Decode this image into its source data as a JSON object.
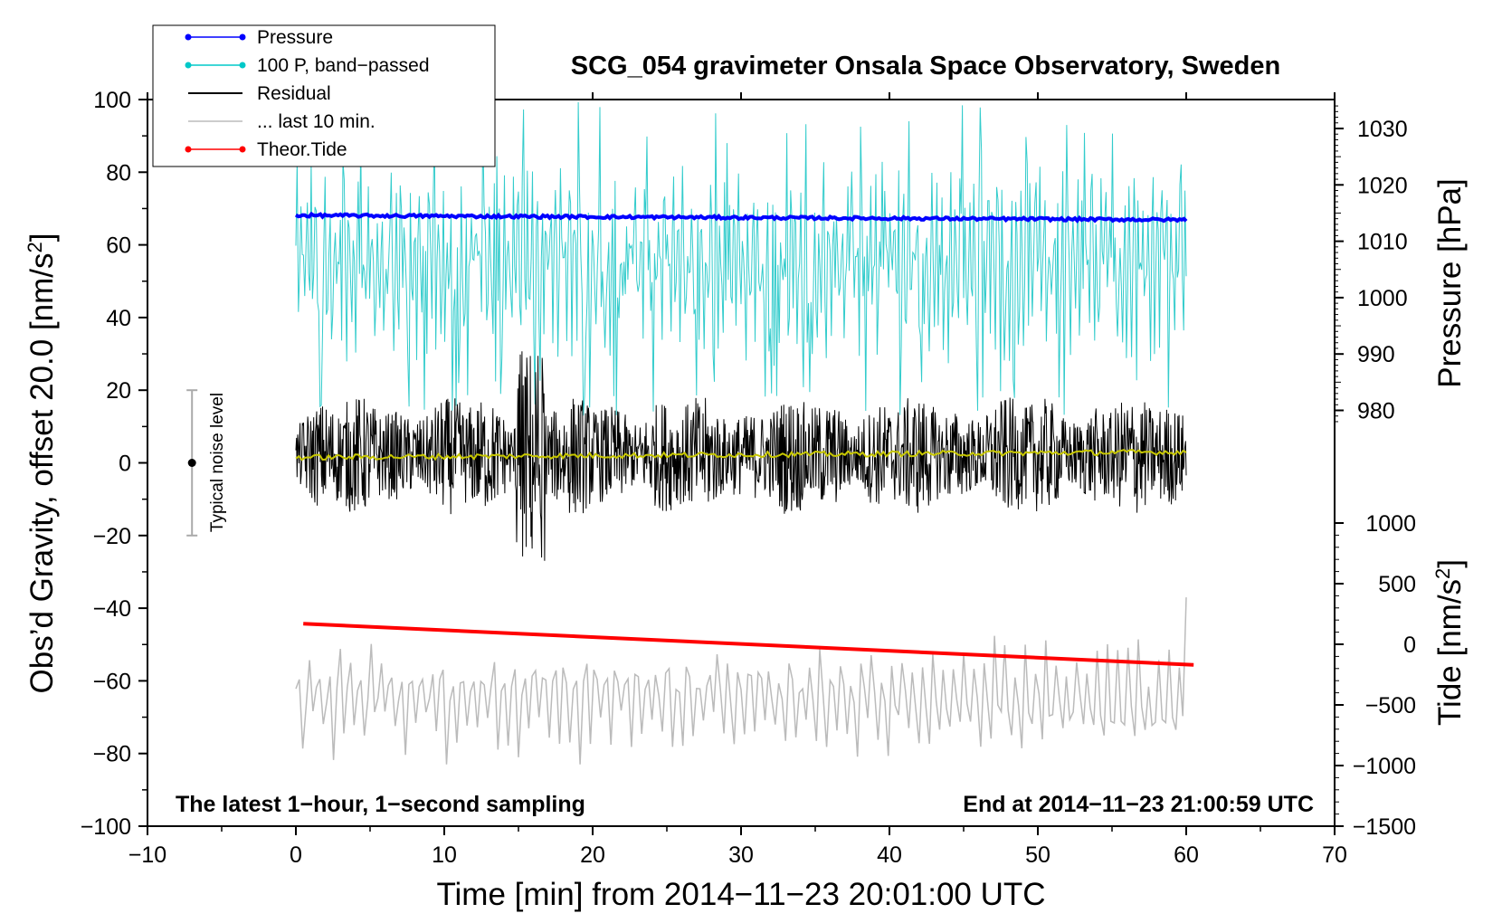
{
  "chart_data": {
    "type": "line",
    "title": "SCG_054 gravimeter Onsala Space Observatory, Sweden",
    "xlabel": "Time [min] from 2014−11−23 20:01:00 UTC",
    "ylabel": "Obs’d Gravity, offset 20.0 [nm/s",
    "ylabel_sup": "2",
    "ylabel_close": "]",
    "y2label": "Pressure [hPa]",
    "y3label": "Tide [nm/s",
    "y3label_sup": "2",
    "y3label_close": "]",
    "xlim": [
      -10,
      70
    ],
    "ylim": [
      -100,
      100
    ],
    "x_ticks": [
      "−10",
      "0",
      "10",
      "20",
      "30",
      "40",
      "50",
      "60",
      "70"
    ],
    "y_ticks": [
      "100",
      "80",
      "60",
      "40",
      "20",
      "0",
      "−20",
      "−40",
      "−60",
      "−80",
      "−100"
    ],
    "pressure_axis": {
      "ticks": [
        "1030",
        "1020",
        "1010",
        "1000",
        "990",
        "980"
      ],
      "range": [
        975,
        1035
      ]
    },
    "tide_axis": {
      "ticks": [
        "1000",
        "500",
        "0",
        "−500",
        "−1000",
        "−1500"
      ],
      "range": [
        -1500,
        1000
      ]
    },
    "annotations": {
      "left": "The latest 1−hour, 1−second sampling",
      "right": "End at 2014−11−23 21:00:59 UTC",
      "noise": "Typical noise level"
    },
    "noise_bar": {
      "x": -7,
      "center": 0,
      "half_range": 20
    },
    "legend": [
      {
        "label": "Pressure",
        "color": "#0000ff",
        "marker": true
      },
      {
        "label": "100 P, band−passed",
        "color": "#00c8c8",
        "marker": true
      },
      {
        "label": "Residual",
        "color": "#000000",
        "marker": false
      },
      {
        "label": "... last 10 min.",
        "color": "#bbbbbb",
        "marker": false
      },
      {
        "label": "Theor.Tide",
        "color": "#ff0000",
        "marker": true
      }
    ],
    "series": [
      {
        "name": "Pressure",
        "axis": "pressure",
        "color": "#0000ff",
        "x_range": [
          0,
          60
        ],
        "start": 1014.6,
        "end": 1013.8
      },
      {
        "name": "100 P, band−passed",
        "axis": "gravity",
        "color": "#33cccc",
        "x_range": [
          0,
          60
        ],
        "baseline": 55,
        "amplitude": 22,
        "peak_max": 100,
        "floor": 13
      },
      {
        "name": "Residual",
        "axis": "gravity",
        "color": "#000000",
        "x_range": [
          0,
          60
        ],
        "center": 2,
        "amplitude": 12,
        "max": 40,
        "min": -37
      },
      {
        "name": "Residual smoothed",
        "axis": "gravity",
        "color": "#c8c800",
        "x_range": [
          0,
          60
        ],
        "start": 1.5,
        "end": 3
      },
      {
        "name": "... last 10 min.",
        "axis": "gravity",
        "color": "#bbbbbb",
        "x_range": [
          0,
          60
        ],
        "center": -65,
        "amplitude": 12,
        "max": -37,
        "min": -83
      },
      {
        "name": "Theor.Tide",
        "axis": "tide",
        "color": "#ff0000",
        "x_range": [
          0.5,
          60.5
        ],
        "start": 170,
        "end": -170
      }
    ]
  }
}
